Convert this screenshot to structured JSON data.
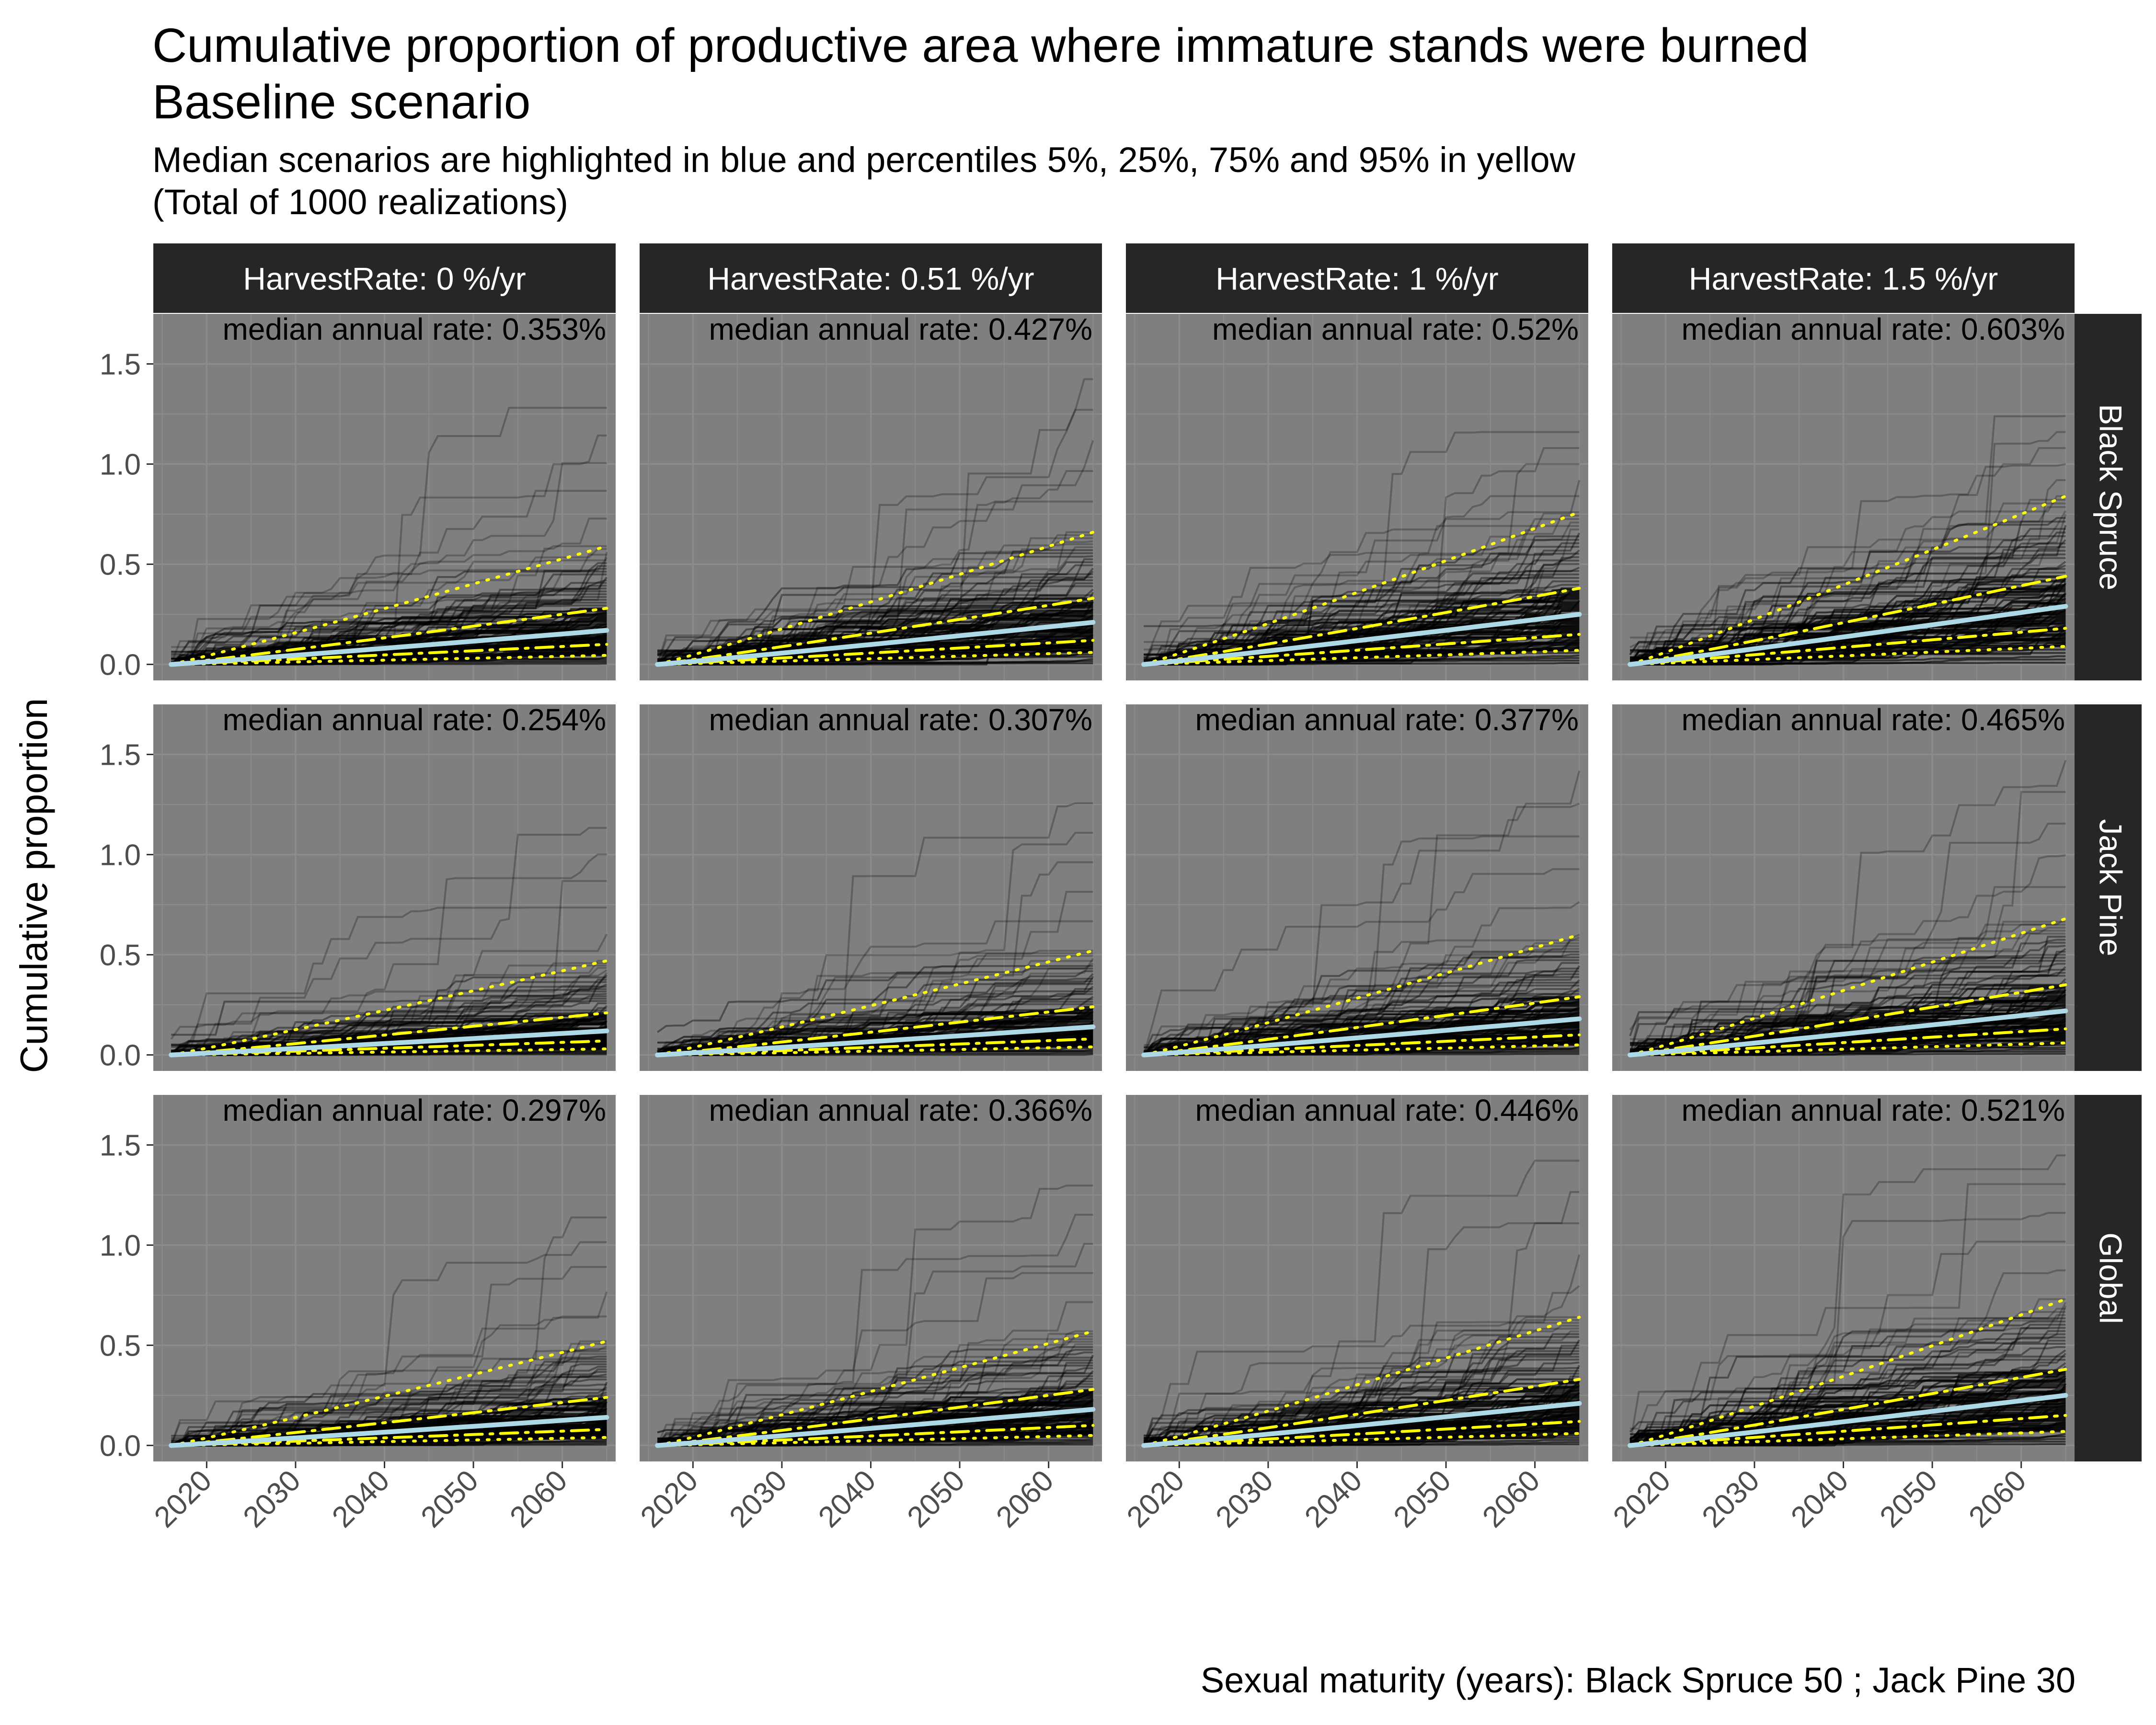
{
  "title_line1": "Cumulative proportion of productive area where immature stands were burned",
  "title_line2": "Baseline scenario",
  "subtitle_line1": "Median scenarios are highlighted in blue and percentiles 5%, 25%, 75% and 95% in yellow",
  "subtitle_line2": "(Total of 1000 realizations)",
  "caption": "Sexual maturity (years): Black Spruce 50 ; Jack Pine 30",
  "colors": {
    "panel_bg": "#7f7f7f",
    "grid": "#8c8c8c",
    "strip_bg": "#262626",
    "strip_text": "#ffffff",
    "median": "#add8e6",
    "percentile": "#ffff00",
    "realization": "#000000"
  },
  "chart_data": {
    "type": "line",
    "facet_columns": [
      "HarvestRate: 0 %/yr",
      "HarvestRate: 0.51 %/yr",
      "HarvestRate: 1 %/yr",
      "HarvestRate: 1.5 %/yr"
    ],
    "facet_rows": [
      "Black Spruce",
      "Jack Pine",
      "Global"
    ],
    "xlabel": "",
    "ylabel": "Cumulative proportion",
    "x_ticks": [
      2020,
      2030,
      2040,
      2050,
      2060
    ],
    "y_ticks": [
      "0.0",
      "0.5",
      "1.0",
      "1.5"
    ],
    "xlim": [
      2014,
      2066
    ],
    "ylim": [
      -0.08,
      1.75
    ],
    "x_start": 2016,
    "x_end": 2065,
    "realizations": 1000,
    "line_styles": {
      "median": "solid",
      "p5": "dotted",
      "p25": "dotdash",
      "p75": "dotdash",
      "p95": "dotted"
    },
    "panels": [
      {
        "row": "Black Spruce",
        "col": "HarvestRate: 0 %/yr",
        "label": "median annual rate: 0.353%",
        "end": {
          "p5": 0.045,
          "p25": 0.1,
          "median": 0.17,
          "p75": 0.28,
          "p95": 0.59
        },
        "max_end": 1.35
      },
      {
        "row": "Black Spruce",
        "col": "HarvestRate: 0.51 %/yr",
        "label": "median annual rate: 0.427%",
        "end": {
          "p5": 0.06,
          "p25": 0.12,
          "median": 0.21,
          "p75": 0.33,
          "p95": 0.66
        },
        "max_end": 1.5
      },
      {
        "row": "Black Spruce",
        "col": "HarvestRate: 1 %/yr",
        "label": "median annual rate: 0.52%",
        "end": {
          "p5": 0.07,
          "p25": 0.15,
          "median": 0.25,
          "p75": 0.38,
          "p95": 0.76
        },
        "max_end": 1.2
      },
      {
        "row": "Black Spruce",
        "col": "HarvestRate: 1.5 %/yr",
        "label": "median annual rate: 0.603%",
        "end": {
          "p5": 0.09,
          "p25": 0.18,
          "median": 0.29,
          "p75": 0.44,
          "p95": 0.84
        },
        "max_end": 1.28
      },
      {
        "row": "Jack Pine",
        "col": "HarvestRate: 0 %/yr",
        "label": "median annual rate: 0.254%",
        "end": {
          "p5": 0.03,
          "p25": 0.07,
          "median": 0.12,
          "p75": 0.21,
          "p95": 0.47
        },
        "max_end": 1.2
      },
      {
        "row": "Jack Pine",
        "col": "HarvestRate: 0.51 %/yr",
        "label": "median annual rate: 0.307%",
        "end": {
          "p5": 0.04,
          "p25": 0.08,
          "median": 0.14,
          "p75": 0.24,
          "p95": 0.52
        },
        "max_end": 1.33
      },
      {
        "row": "Jack Pine",
        "col": "HarvestRate: 1 %/yr",
        "label": "median annual rate: 0.377%",
        "end": {
          "p5": 0.05,
          "p25": 0.1,
          "median": 0.18,
          "p75": 0.29,
          "p95": 0.6
        },
        "max_end": 1.5
      },
      {
        "row": "Jack Pine",
        "col": "HarvestRate: 1.5 %/yr",
        "label": "median annual rate: 0.465%",
        "end": {
          "p5": 0.06,
          "p25": 0.13,
          "median": 0.22,
          "p75": 0.35,
          "p95": 0.68
        },
        "max_end": 1.55
      },
      {
        "row": "Global",
        "col": "HarvestRate: 0 %/yr",
        "label": "median annual rate: 0.297%",
        "end": {
          "p5": 0.04,
          "p25": 0.08,
          "median": 0.14,
          "p75": 0.24,
          "p95": 0.52
        },
        "max_end": 1.2
      },
      {
        "row": "Global",
        "col": "HarvestRate: 0.51 %/yr",
        "label": "median annual rate: 0.366%",
        "end": {
          "p5": 0.05,
          "p25": 0.1,
          "median": 0.18,
          "p75": 0.28,
          "p95": 0.57
        },
        "max_end": 1.37
      },
      {
        "row": "Global",
        "col": "HarvestRate: 1 %/yr",
        "label": "median annual rate: 0.446%",
        "end": {
          "p5": 0.06,
          "p25": 0.12,
          "median": 0.21,
          "p75": 0.33,
          "p95": 0.64
        },
        "max_end": 1.5
      },
      {
        "row": "Global",
        "col": "HarvestRate: 1.5 %/yr",
        "label": "median annual rate: 0.521%",
        "end": {
          "p5": 0.07,
          "p25": 0.15,
          "median": 0.25,
          "p75": 0.38,
          "p95": 0.73
        },
        "max_end": 1.52
      }
    ]
  }
}
